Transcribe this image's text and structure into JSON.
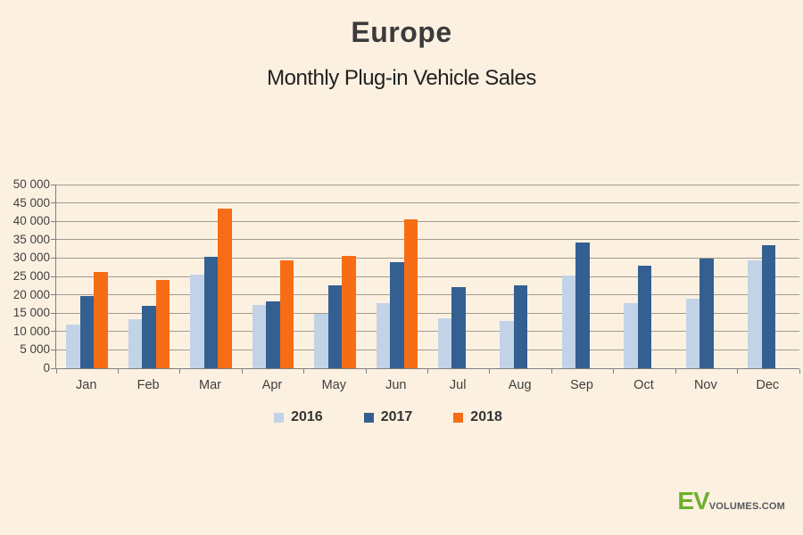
{
  "title": "Europe",
  "subtitle": "Monthly Plug-in Vehicle Sales",
  "logo": {
    "ev": "EV",
    "rest": "VOLUMES.COM"
  },
  "colors": {
    "background": "#fcf1e1",
    "series_2016": "#c3d3e7",
    "series_2017": "#345f91",
    "series_2018": "#f76d16",
    "gridline": "#a29b90",
    "axis": "#7f7f7f",
    "tick_text": "#3f3f3f",
    "logo_green": "#6cb02c",
    "logo_gray": "#55565a"
  },
  "chart_data": {
    "type": "bar",
    "categories": [
      "Jan",
      "Feb",
      "Mar",
      "Apr",
      "May",
      "Jun",
      "Jul",
      "Aug",
      "Sep",
      "Oct",
      "Nov",
      "Dec"
    ],
    "series": [
      {
        "name": "2016",
        "color": "#c3d3e7",
        "values": [
          12000,
          13400,
          25500,
          17200,
          14800,
          17800,
          13500,
          12900,
          25300,
          17800,
          19000,
          29300
        ]
      },
      {
        "name": "2017",
        "color": "#345f91",
        "values": [
          19600,
          17000,
          30300,
          18100,
          22500,
          28900,
          22000,
          22500,
          34300,
          28000,
          29800,
          33500
        ]
      },
      {
        "name": "2018",
        "color": "#f76d16",
        "values": [
          26100,
          24000,
          43400,
          29400,
          30700,
          40600,
          null,
          null,
          null,
          null,
          null,
          null
        ]
      }
    ],
    "title": "Europe",
    "subtitle": "Monthly Plug-in Vehicle Sales",
    "xlabel": "",
    "ylabel": "",
    "ylim": [
      0,
      50000
    ],
    "ytick_step": 5000,
    "ytick_labels": [
      "0",
      "5 000",
      "10 000",
      "15 000",
      "20 000",
      "25 000",
      "30 000",
      "35 000",
      "40 000",
      "45 000",
      "50 000"
    ],
    "grid": true,
    "legend_position": "bottom-center"
  }
}
